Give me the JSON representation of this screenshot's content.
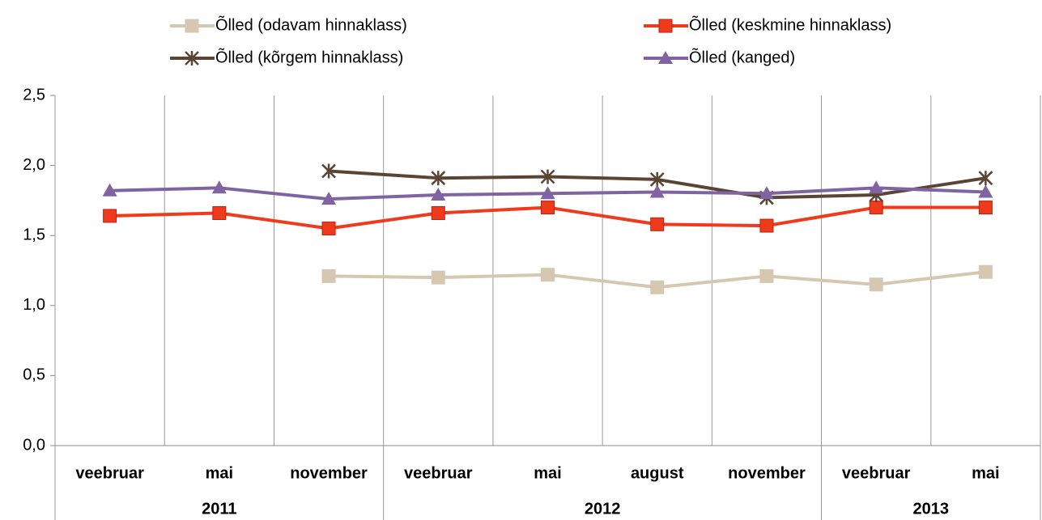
{
  "chart_data": {
    "type": "line",
    "categories": [
      "veebruar",
      "mai",
      "november",
      "veebruar",
      "mai",
      "august",
      "november",
      "veebruar",
      "mai"
    ],
    "groups": [
      {
        "label": "2011",
        "span": 3
      },
      {
        "label": "2012",
        "span": 4
      },
      {
        "label": "2013",
        "span": 2
      }
    ],
    "series": [
      {
        "name": "Õlled (odavam hinnaklass)",
        "color": "#d6c7b0",
        "marker": "square",
        "values": [
          null,
          null,
          1.21,
          1.2,
          1.22,
          1.13,
          1.21,
          1.15,
          1.24
        ]
      },
      {
        "name": "Õlled (keskmine hinnaklass)",
        "color": "#f03a1c",
        "marker": "square",
        "values": [
          1.64,
          1.66,
          1.55,
          1.66,
          1.7,
          1.58,
          1.57,
          1.7,
          1.7
        ]
      },
      {
        "name": "Õlled (kõrgem hinnaklass)",
        "color": "#5a4535",
        "marker": "star",
        "values": [
          null,
          null,
          1.96,
          1.91,
          1.92,
          1.9,
          1.77,
          1.79,
          1.91
        ]
      },
      {
        "name": "Õlled (kanged)",
        "color": "#8064a2",
        "marker": "triangle",
        "values": [
          1.82,
          1.84,
          1.76,
          1.79,
          1.8,
          1.81,
          1.8,
          1.84,
          1.81
        ]
      }
    ],
    "ylim": [
      0,
      2.5
    ],
    "yticks": [
      {
        "value": 0,
        "label": "0,0"
      },
      {
        "value": 0.5,
        "label": "0,5"
      },
      {
        "value": 1,
        "label": "1,0"
      },
      {
        "value": 1.5,
        "label": "1,5"
      },
      {
        "value": 2,
        "label": "2,0"
      },
      {
        "value": 2.5,
        "label": "2,5"
      }
    ]
  }
}
